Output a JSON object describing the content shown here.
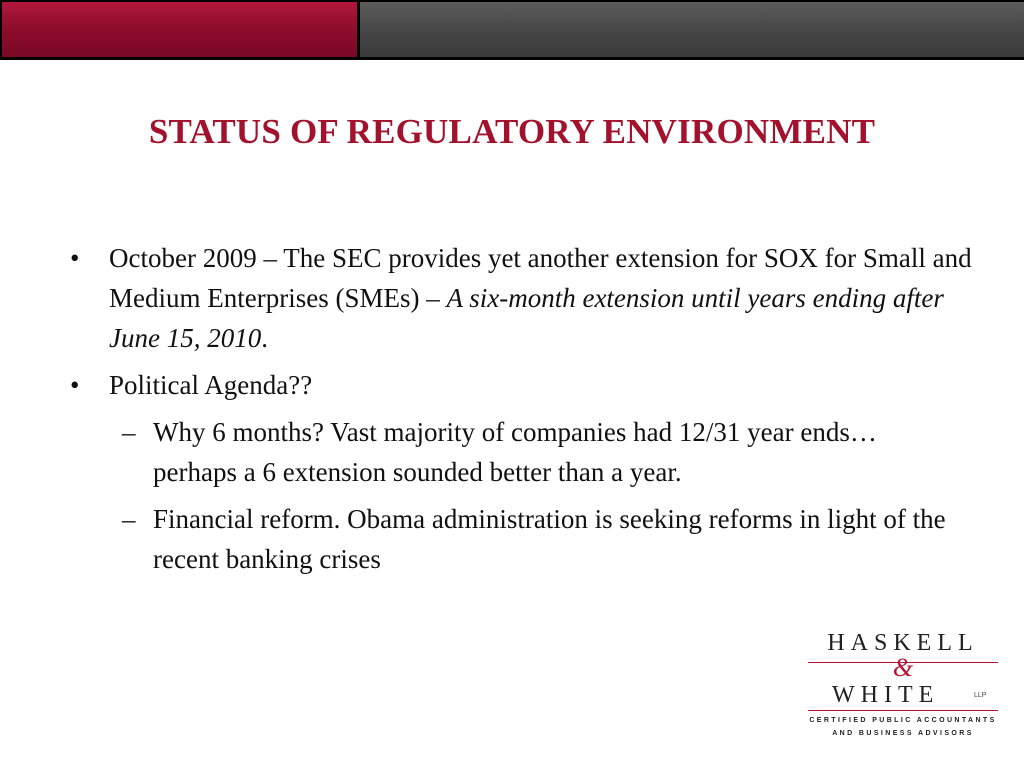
{
  "slide": {
    "title": "STATUS OF REGULATORY ENVIRONMENT",
    "bullet_symbol": "•",
    "dash_symbol": "–",
    "bullets": [
      {
        "text": "October 2009 – The SEC provides yet another extension for SOX for Small and Medium Enterprises (SMEs) – ",
        "emphasis": "A six-month extension until years ending after June 15, 2010",
        "tail": "."
      },
      {
        "text": "Political Agenda??"
      }
    ],
    "sub_bullets": [
      {
        "text": "Why 6 months?  Vast majority of companies had 12/31 year ends…perhaps a 6 extension sounded better than a year."
      },
      {
        "text": "Financial reform.  Obama administration is seeking reforms in light of the recent banking crises"
      }
    ]
  },
  "logo": {
    "line1": "HASKELL",
    "ampersand": "&",
    "line2": "WHITE",
    "suffix": "LLP",
    "tagline1": "CERTIFIED PUBLIC ACCOUNTANTS",
    "tagline2": "AND BUSINESS ADVISORS",
    "accent_color": "#b5132f"
  },
  "colors": {
    "title": "#a3122d",
    "bar_red": "#8f0e2c",
    "bar_gray": "#474747"
  }
}
